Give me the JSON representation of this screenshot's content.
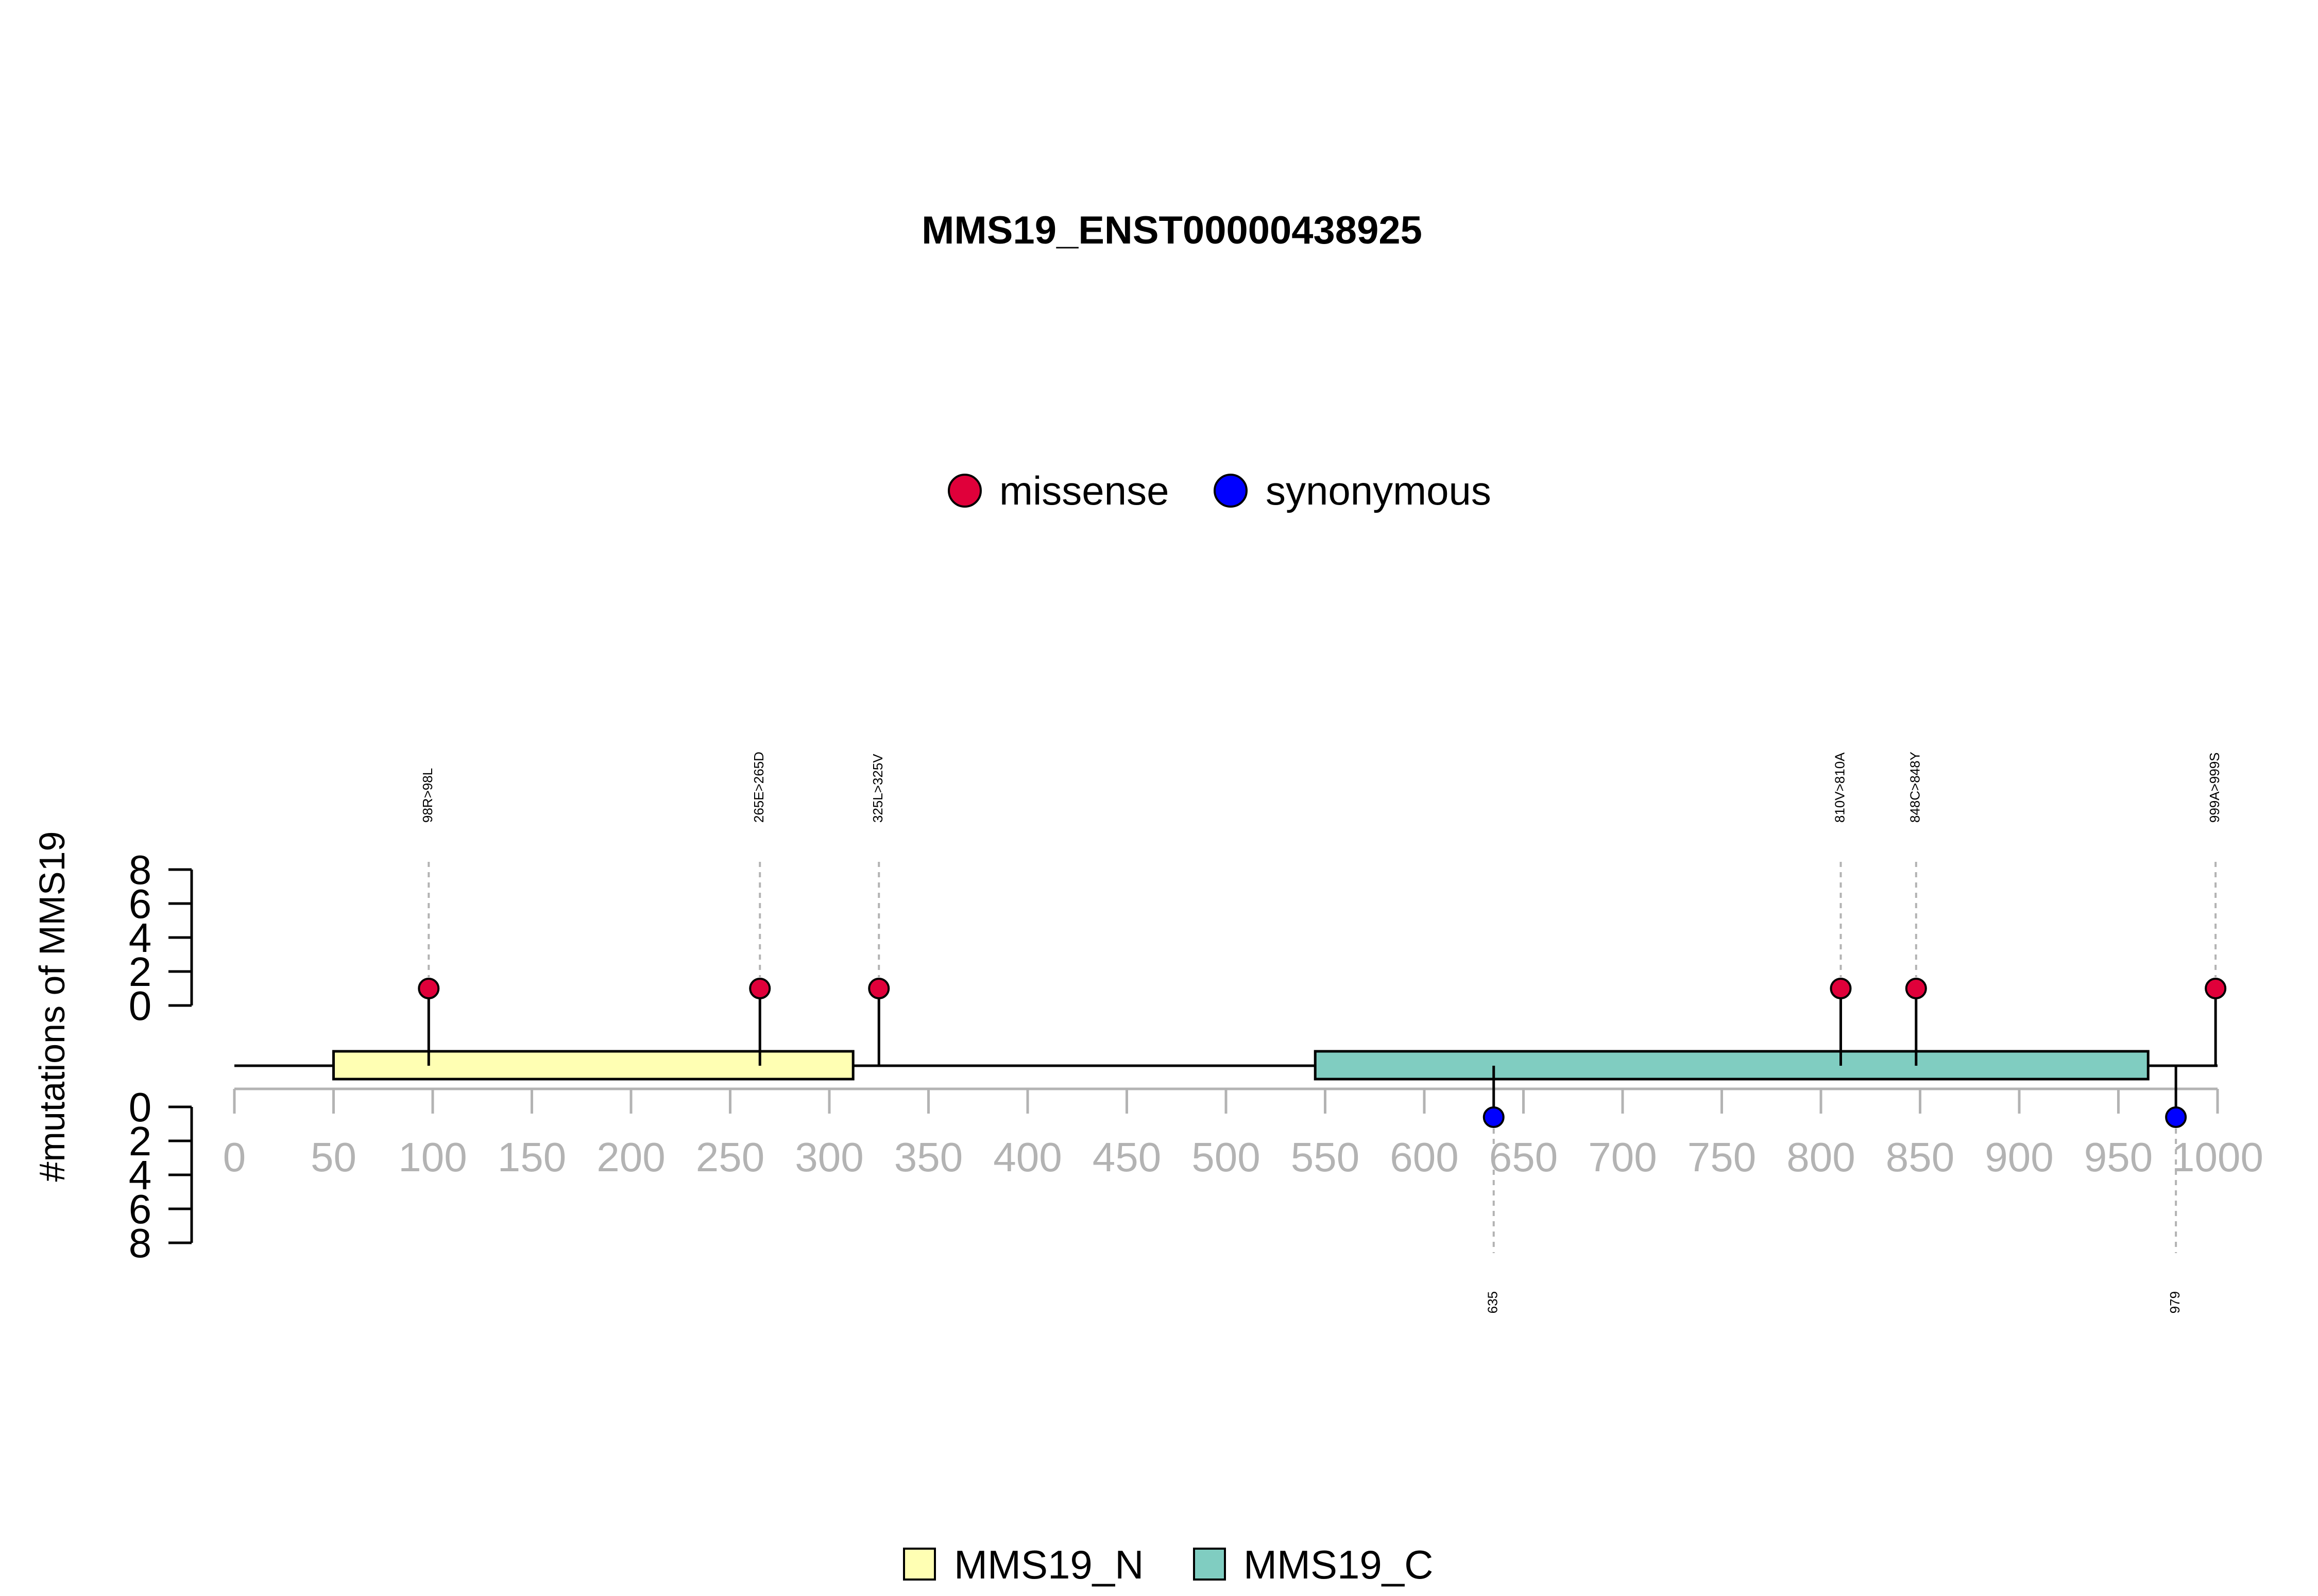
{
  "chart_data": {
    "type": "lollipop",
    "title": "MMS19_ENST00000438925",
    "ylabel": "#mutations of MMS19",
    "xlim": [
      0,
      1000
    ],
    "x_ticks": [
      0,
      50,
      100,
      150,
      200,
      250,
      300,
      350,
      400,
      450,
      500,
      550,
      600,
      650,
      700,
      750,
      800,
      850,
      900,
      950,
      1000
    ],
    "y_ticks_top": [
      0,
      2,
      4,
      6,
      8
    ],
    "y_ticks_bottom": [
      0,
      2,
      4,
      6,
      8
    ],
    "mutation_legend": [
      {
        "label": "missense",
        "color": "#e0003a"
      },
      {
        "label": "synonymous",
        "color": "#0000ff"
      }
    ],
    "domain_legend": [
      {
        "label": "MMS19_N",
        "color": "#ffffb3"
      },
      {
        "label": "MMS19_C",
        "color": "#80cdc1"
      }
    ],
    "domains": [
      {
        "name": "MMS19_N",
        "start": 50,
        "end": 312,
        "color": "#ffffb3"
      },
      {
        "name": "MMS19_C",
        "start": 545,
        "end": 965,
        "color": "#80cdc1"
      }
    ],
    "mutations_top": [
      {
        "pos": 98,
        "label": "98R>98L",
        "type": "missense",
        "count": 1
      },
      {
        "pos": 265,
        "label": "265E>265D",
        "type": "missense",
        "count": 1
      },
      {
        "pos": 325,
        "label": "325L>325V",
        "type": "missense",
        "count": 1
      },
      {
        "pos": 810,
        "label": "810V>810A",
        "type": "missense",
        "count": 1
      },
      {
        "pos": 848,
        "label": "848C>848Y",
        "type": "missense",
        "count": 1
      },
      {
        "pos": 999,
        "label": "999A>999S",
        "type": "missense",
        "count": 1
      }
    ],
    "mutations_bottom": [
      {
        "pos": 635,
        "label": "635",
        "type": "synonymous",
        "count": 1
      },
      {
        "pos": 979,
        "label": "979",
        "type": "synonymous",
        "count": 1
      }
    ]
  }
}
